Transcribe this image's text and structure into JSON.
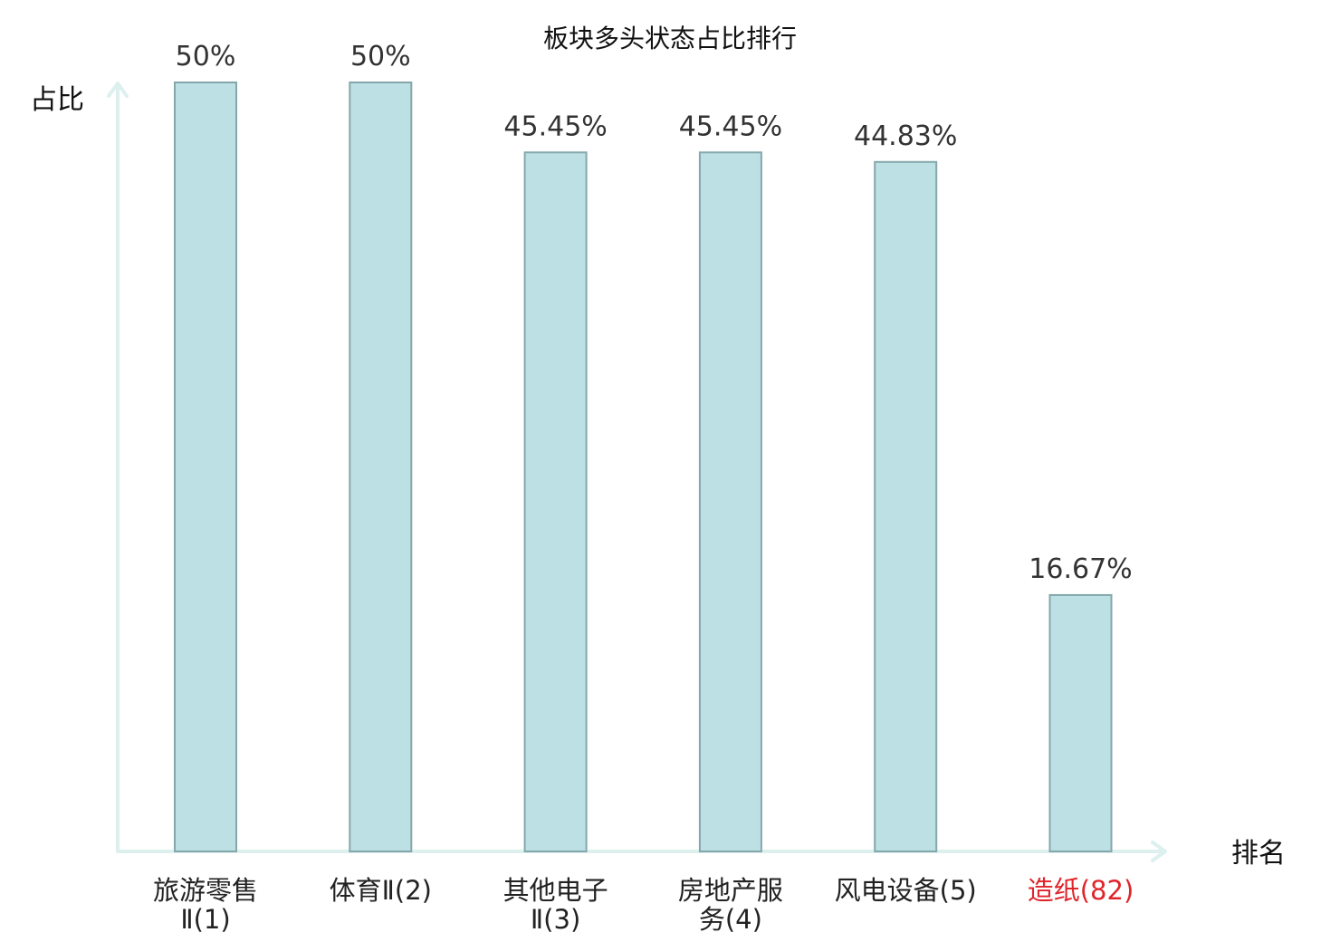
{
  "chart_data": {
    "type": "bar",
    "title": "板块多头状态占比排行",
    "ylabel": "占比",
    "xlabel": "排名",
    "ylim": [
      0,
      50
    ],
    "categories": [
      {
        "name": "旅游零售",
        "suffix": "Ⅱ(1)",
        "lines": [
          "旅游零售",
          "Ⅱ(1)"
        ],
        "highlight": false
      },
      {
        "name": "体育",
        "suffix": "Ⅱ(2)",
        "lines": [
          "体育Ⅱ(2)"
        ],
        "highlight": false
      },
      {
        "name": "其他电子",
        "suffix": "Ⅱ(3)",
        "lines": [
          "其他电子",
          "Ⅱ(3)"
        ],
        "highlight": false
      },
      {
        "name": "房地产服务",
        "suffix": "(4)",
        "lines": [
          "房地产服",
          "务(4)"
        ],
        "highlight": false
      },
      {
        "name": "风电设备",
        "suffix": "(5)",
        "lines": [
          "风电设备(5)"
        ],
        "highlight": false
      },
      {
        "name": "造纸",
        "suffix": "(82)",
        "lines": [
          "造纸(82)"
        ],
        "highlight": true
      }
    ],
    "values": [
      50,
      50,
      45.45,
      45.45,
      44.83,
      16.67
    ],
    "value_labels": [
      "50%",
      "50%",
      "45.45%",
      "45.45%",
      "44.83%",
      "16.67%"
    ],
    "grid": false,
    "legend": "none",
    "colors": {
      "bar_fill": "#bce0e3",
      "bar_stroke": "#85a7ac",
      "axis": "#ddf0ee",
      "highlight": "#e0242a",
      "text": "#222222"
    }
  }
}
